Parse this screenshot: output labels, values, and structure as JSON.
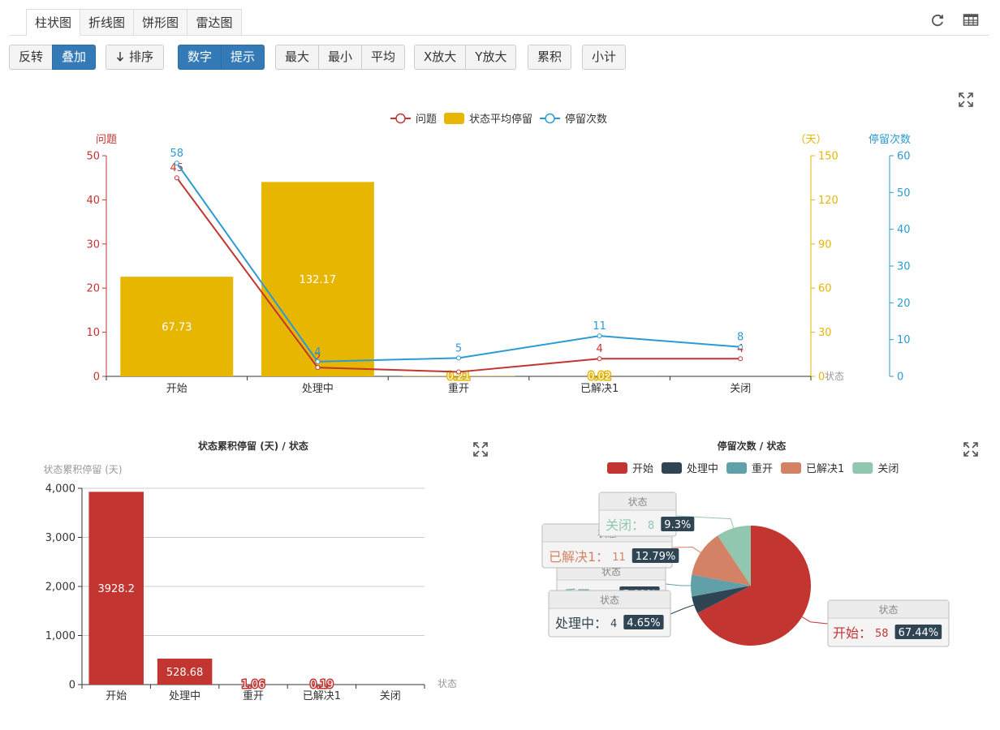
{
  "tabs": [
    {
      "label": "柱状图",
      "active": true
    },
    {
      "label": "折线图",
      "active": false
    },
    {
      "label": "饼形图",
      "active": false
    },
    {
      "label": "雷达图",
      "active": false
    }
  ],
  "top_icons": {
    "refresh": "refresh-icon",
    "table": "table-icon"
  },
  "toolbar": {
    "reverse": "反转",
    "stack": "叠加",
    "sort": "排序",
    "sort_icon": "arrow-down-icon",
    "number": "数字",
    "tooltip": "提示",
    "max": "最大",
    "min": "最小",
    "avg": "平均",
    "x_zoom": "X放大",
    "y_zoom": "Y放大",
    "cumulative": "累积",
    "subtotal": "小计"
  },
  "colors": {
    "red": "#c23531",
    "gold": "#e6b600",
    "blue": "#2b9bd3",
    "navy": "#2f4554",
    "teal": "#61a0a8",
    "orange": "#d48265",
    "green": "#91c7ae",
    "primary": "#337ab7"
  },
  "chart_data": [
    {
      "type": "bar",
      "categories": [
        "开始",
        "处理中",
        "重开",
        "已解决1",
        "关闭"
      ],
      "series": [
        {
          "name": "问题",
          "type": "line",
          "axis": "left",
          "values": [
            45,
            2,
            1,
            4,
            4
          ],
          "labels": [
            "45",
            "2",
            "",
            "4",
            "4"
          ]
        },
        {
          "name": "状态平均停留",
          "type": "bar",
          "axis": "right1",
          "values": [
            67.73,
            132.17,
            0.21,
            0.02,
            0
          ],
          "labels": [
            "67.73",
            "132.17",
            "0.21",
            "0.02",
            ""
          ]
        },
        {
          "name": "停留次数",
          "type": "line",
          "axis": "right2",
          "values": [
            58,
            4,
            5,
            11,
            8
          ],
          "labels": [
            "58",
            "4",
            "5",
            "11",
            "8"
          ]
        }
      ],
      "axes": {
        "left": {
          "name": "问题",
          "range": [
            0,
            50
          ],
          "ticks": [
            "0",
            "10",
            "20",
            "30",
            "40",
            "50"
          ]
        },
        "right1": {
          "name": "（天）",
          "range": [
            0,
            150
          ],
          "ticks": [
            "0",
            "30",
            "60",
            "90",
            "120",
            "150"
          ]
        },
        "right2": {
          "name": "停留次数",
          "range": [
            0,
            60
          ],
          "ticks": [
            "0",
            "10",
            "20",
            "30",
            "40",
            "50",
            "60"
          ]
        },
        "x_name": "状态"
      },
      "legend": "top-center",
      "grid": false
    },
    {
      "type": "bar",
      "title": "状态累积停留 (天) / 状态",
      "ylabel": "状态累积停留 (天)",
      "xlabel": "状态",
      "categories": [
        "开始",
        "处理中",
        "重开",
        "已解决1",
        "关闭"
      ],
      "values": [
        3928.2,
        528.68,
        1.06,
        0.19,
        0
      ],
      "labels": [
        "3928.2",
        "528.68",
        "1.06",
        "0.19",
        ""
      ],
      "ylim": [
        0,
        4000
      ],
      "y_ticks": [
        "0",
        "1,000",
        "2,000",
        "3,000",
        "4,000"
      ],
      "grid": true
    },
    {
      "type": "pie",
      "title": "停留次数 / 状态",
      "legend": "top-center",
      "series_label": "状态",
      "slices": [
        {
          "name": "开始",
          "value": 58,
          "value_label": "58",
          "percent": "67.44%"
        },
        {
          "name": "处理中",
          "value": 4,
          "value_label": "4",
          "percent": "4.65%"
        },
        {
          "name": "重开",
          "value": 5,
          "value_label": "5",
          "percent": "5.82%"
        },
        {
          "name": "已解决1",
          "value": 11,
          "value_label": "11",
          "percent": "12.79%"
        },
        {
          "name": "关闭",
          "value": 8,
          "value_label": "8",
          "percent": "9.3%"
        }
      ]
    }
  ]
}
